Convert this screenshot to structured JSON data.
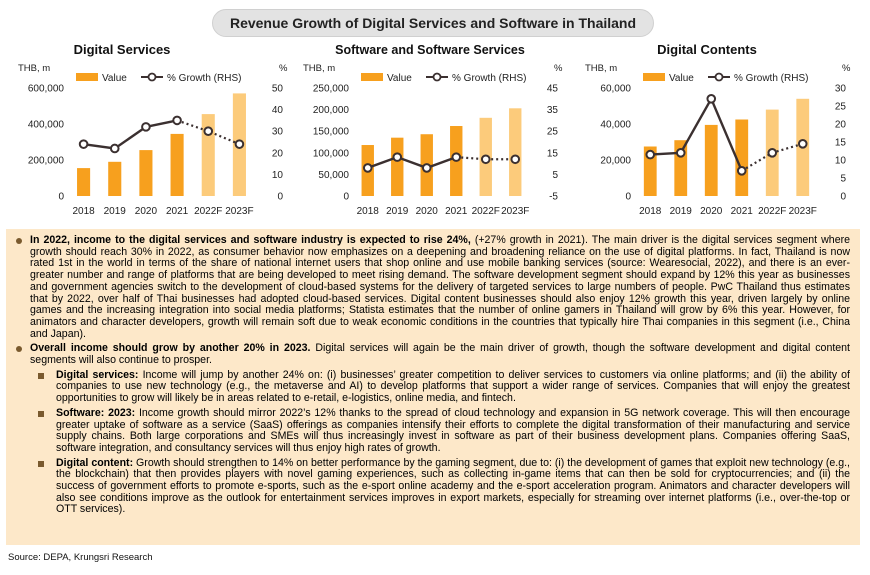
{
  "page_title": "Revenue Growth of Digital Services and Software in Thailand",
  "source": "Source: DEPA, Krungsri Research",
  "chart_data": [
    {
      "type": "bar",
      "title": "Digital Services",
      "ylabel": "THB, m",
      "y2label": "%",
      "categories": [
        "2018",
        "2019",
        "2020",
        "2021",
        "2022F",
        "2023F"
      ],
      "ylim": [
        0,
        600000
      ],
      "yticks": [
        "0",
        "200,000",
        "400,000",
        "600,000"
      ],
      "y2lim": [
        0,
        50
      ],
      "y2ticks": [
        "0",
        "10",
        "20",
        "30",
        "40",
        "50"
      ],
      "series": [
        {
          "name": "Value",
          "kind": "bar",
          "values": [
            155000,
            190000,
            255000,
            345000,
            455000,
            570000
          ]
        },
        {
          "name": "% Growth (RHS)",
          "kind": "line",
          "axis": "right",
          "values": [
            24,
            22,
            32,
            35,
            30,
            24
          ]
        }
      ],
      "legend": "top-left",
      "grid": false,
      "colors": {
        "bar": "#f7a01e",
        "bar_forecast": "#fccb7b",
        "line": "#3b3030"
      }
    },
    {
      "type": "bar",
      "title": "Software and Software Services",
      "ylabel": "THB, m",
      "y2label": "%",
      "categories": [
        "2018",
        "2019",
        "2020",
        "2021",
        "2022F",
        "2023F"
      ],
      "ylim": [
        0,
        250000
      ],
      "yticks": [
        "0",
        "50,000",
        "100,000",
        "150,000",
        "200,000",
        "250,000"
      ],
      "y2lim": [
        -5,
        45
      ],
      "y2ticks": [
        "-5",
        "5",
        "15",
        "25",
        "35",
        "45"
      ],
      "series": [
        {
          "name": "Value",
          "kind": "bar",
          "values": [
            118000,
            135000,
            143000,
            162000,
            181000,
            203000
          ]
        },
        {
          "name": "% Growth (RHS)",
          "kind": "line",
          "axis": "right",
          "values": [
            8,
            13,
            8,
            13,
            12,
            12
          ]
        }
      ],
      "legend": "top-left",
      "grid": false,
      "colors": {
        "bar": "#f7a01e",
        "bar_forecast": "#fccb7b",
        "line": "#3b3030"
      }
    },
    {
      "type": "bar",
      "title": "Digital Contents",
      "ylabel": "THB, m",
      "y2label": "%",
      "categories": [
        "2018",
        "2019",
        "2020",
        "2021",
        "2022F",
        "2023F"
      ],
      "ylim": [
        0,
        60000
      ],
      "yticks": [
        "0",
        "20,000",
        "40,000",
        "60,000"
      ],
      "y2lim": [
        0,
        30
      ],
      "y2ticks": [
        "0",
        "5",
        "10",
        "15",
        "20",
        "25",
        "30"
      ],
      "series": [
        {
          "name": "Value",
          "kind": "bar",
          "values": [
            27500,
            31000,
            39500,
            42500,
            48000,
            54000
          ]
        },
        {
          "name": "% Growth (RHS)",
          "kind": "line",
          "axis": "right",
          "values": [
            11.5,
            12,
            27,
            7,
            12,
            14.5
          ]
        }
      ],
      "legend": "top-left",
      "grid": false,
      "colors": {
        "bar": "#f7a01e",
        "bar_forecast": "#fccb7b",
        "line": "#3b3030"
      }
    }
  ],
  "text": {
    "p1_bold": "In 2022, income to the digital services and software industry is expected to rise 24%,",
    "p1": " (+27% growth in 2021). The main driver is the digital services segment where growth should reach 30% in 2022, as consumer behavior now emphasizes on a deepening and broadening reliance on the use of digital platforms. In fact, Thailand is now rated 1st in the world in terms of the share of national internet users that shop online and use mobile banking services (source: Wearesocial, 2022), and there is an ever-greater number and range of platforms that are being developed to meet rising demand. The software development segment should expand by 12% this year as businesses and government agencies switch to the development of cloud-based systems for the delivery of targeted services to large numbers of people. PwC Thailand thus estimates that by 2022, over half of Thai businesses had adopted cloud-based services. Digital content businesses should also enjoy 12% growth this year, driven largely by online games and the increasing integration into social media platforms; Statista estimates that the number of online gamers in Thailand will grow by 6% this year. However, for animators and character developers, growth will remain soft due to weak economic conditions in the countries that typically hire Thai companies in this segment (i.e., China and Japan).",
    "p2_bold": "Overall income should grow by another 20% in 2023.",
    "p2": " Digital services will again be the main driver of growth, though the software development and digital content segments will also continue to prosper.",
    "s1_bold": "Digital services:",
    "s1": " Income will jump by another 24% on: (i) businesses’ greater competition to deliver services to customers via online platforms; and (ii) the ability of companies to use new technology (e.g., the metaverse and AI) to develop platforms that support a wider range of services. Companies that will enjoy the greatest opportunities to grow will likely be in areas related to e-retail, e-logistics, online media, and fintech.",
    "s2_bold": "Software: 2023:",
    "s2": " Income growth should mirror 2022’s 12% thanks to the spread of cloud technology and expansion in 5G network coverage. This will then encourage greater uptake of software as a service (SaaS) offerings as companies intensify their efforts to complete the digital transformation of their manufacturing and service supply chains. Both large corporations and SMEs will thus increasingly invest in software as part of their business development plans. Companies offering SaaS, software integration, and consultancy services will thus enjoy high rates of growth.",
    "s3_bold": "Digital content:",
    "s3": " Growth should strengthen to 14% on better performance by the gaming segment, due to: (i) the development of games that exploit new technology (e.g., the blockchain) that then provides players with novel gaming experiences, such as collecting in-game items that can then be sold for cryptocurrencies; and (ii) the success of government efforts to promote e-sports, such as the e-sport online academy and the e-sport acceleration program. Animators and character developers will also see conditions improve as the outlook for entertainment services improves in export markets, especially for streaming over internet platforms (i.e., over-the-top or OTT services)."
  }
}
